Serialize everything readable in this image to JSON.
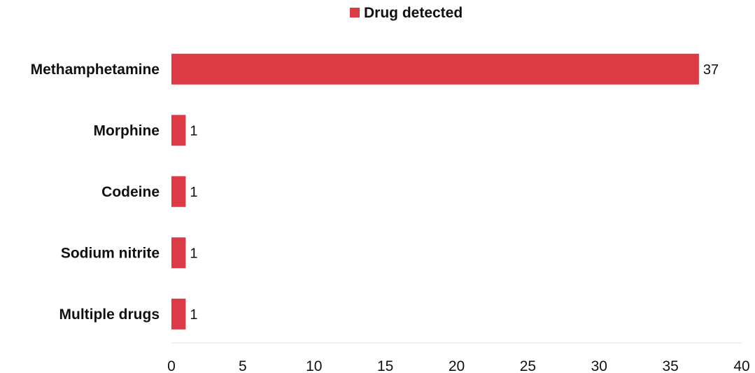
{
  "chart_data": {
    "type": "bar",
    "orientation": "horizontal",
    "categories": [
      "Methamphetamine",
      "Morphine",
      "Codeine",
      "Sodium nitrite",
      "Multiple drugs"
    ],
    "series": [
      {
        "name": "Drug detected",
        "values": [
          37,
          1,
          1,
          1,
          1
        ],
        "color": "#dc3a45"
      }
    ],
    "data_labels": [
      "37",
      "1",
      "1",
      "1",
      "1"
    ],
    "xlim": [
      0,
      40
    ],
    "x_ticks": [
      0,
      5,
      10,
      15,
      20,
      25,
      30,
      35,
      40
    ],
    "x_tick_labels": [
      "0",
      "5",
      "10",
      "15",
      "20",
      "25",
      "30",
      "35",
      "40"
    ],
    "legend": {
      "label": "Drug detected",
      "position": "top"
    },
    "grid": false,
    "title": "",
    "xlabel": "",
    "ylabel": ""
  }
}
